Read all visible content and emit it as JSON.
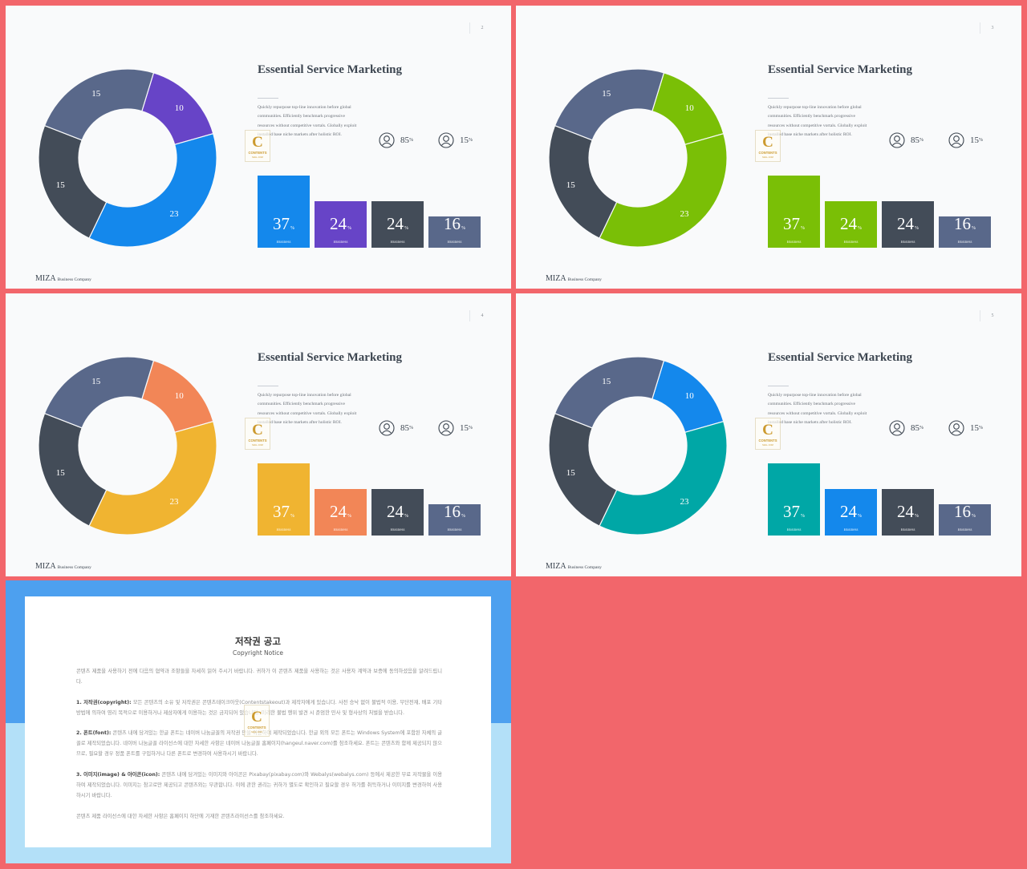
{
  "slides": [
    {
      "page": "2",
      "title": "Essential Service Marketing",
      "description": "Quickly repurpose top-line innovation before global communities. Efficiently benchmark progressive resources without competitive vortals. Globally exploit installed base niche markets after holistic ROI.",
      "stats": [
        {
          "icon": "user-icon",
          "value": "85",
          "unit": "%"
        },
        {
          "icon": "user-icon",
          "value": "15",
          "unit": "%"
        }
      ],
      "donut": [
        {
          "value": 10,
          "label": "10",
          "color": "#6744c7"
        },
        {
          "value": 23,
          "label": "23",
          "color": "#1488ec"
        },
        {
          "value": 15,
          "label": "15",
          "color": "#434c58"
        },
        {
          "value": 15,
          "label": "15",
          "color": "#59688a"
        }
      ],
      "bars": [
        {
          "value": 37,
          "unit": "%",
          "label": "Business",
          "color": "#1488ec"
        },
        {
          "value": 24,
          "unit": "%",
          "label": "Business",
          "color": "#6744c7"
        },
        {
          "value": 24,
          "unit": "%",
          "label": "Business",
          "color": "#434c58"
        },
        {
          "value": 16,
          "unit": "%",
          "label": "Business",
          "color": "#59688a"
        }
      ],
      "footer_brand": "MIZA",
      "footer_sub": "Business Company"
    },
    {
      "page": "3",
      "title": "Essential Service Marketing",
      "description": "Quickly repurpose top-line innovation before global communities. Efficiently benchmark progressive resources without competitive vortals. Globally exploit installed base niche markets after holistic ROI.",
      "stats": [
        {
          "icon": "user-icon",
          "value": "85",
          "unit": "%"
        },
        {
          "icon": "user-icon",
          "value": "15",
          "unit": "%"
        }
      ],
      "donut": [
        {
          "value": 10,
          "label": "10",
          "color": "#7abf06"
        },
        {
          "value": 23,
          "label": "23",
          "color": "#7abf06"
        },
        {
          "value": 15,
          "label": "15",
          "color": "#434c58"
        },
        {
          "value": 15,
          "label": "15",
          "color": "#59688a"
        }
      ],
      "bars": [
        {
          "value": 37,
          "unit": "%",
          "label": "Business",
          "color": "#7abf06"
        },
        {
          "value": 24,
          "unit": "%",
          "label": "Business",
          "color": "#7abf06"
        },
        {
          "value": 24,
          "unit": "%",
          "label": "Business",
          "color": "#434c58"
        },
        {
          "value": 16,
          "unit": "%",
          "label": "Business",
          "color": "#59688a"
        }
      ],
      "footer_brand": "MIZA",
      "footer_sub": "Business Company"
    },
    {
      "page": "4",
      "title": "Essential Service Marketing",
      "description": "Quickly repurpose top-line innovation before global communities. Efficiently benchmark progressive resources without competitive vortals. Globally exploit installed base niche markets after holistic ROI.",
      "stats": [
        {
          "icon": "user-icon",
          "value": "85",
          "unit": "%"
        },
        {
          "icon": "user-icon",
          "value": "15",
          "unit": "%"
        }
      ],
      "donut": [
        {
          "value": 10,
          "label": "10",
          "color": "#f28657"
        },
        {
          "value": 23,
          "label": "23",
          "color": "#f0b431"
        },
        {
          "value": 15,
          "label": "15",
          "color": "#434c58"
        },
        {
          "value": 15,
          "label": "15",
          "color": "#59688a"
        }
      ],
      "bars": [
        {
          "value": 37,
          "unit": "%",
          "label": "Business",
          "color": "#f0b431"
        },
        {
          "value": 24,
          "unit": "%",
          "label": "Business",
          "color": "#f28657"
        },
        {
          "value": 24,
          "unit": "%",
          "label": "Business",
          "color": "#434c58"
        },
        {
          "value": 16,
          "unit": "%",
          "label": "Business",
          "color": "#59688a"
        }
      ],
      "footer_brand": "MIZA",
      "footer_sub": "Business Company"
    },
    {
      "page": "5",
      "title": "Essential Service Marketing",
      "description": "Quickly repurpose top-line innovation before global communities. Efficiently benchmark progressive resources without competitive vortals. Globally exploit installed base niche markets after holistic ROI.",
      "stats": [
        {
          "icon": "user-icon",
          "value": "85",
          "unit": "%"
        },
        {
          "icon": "user-icon",
          "value": "15",
          "unit": "%"
        }
      ],
      "donut": [
        {
          "value": 10,
          "label": "10",
          "color": "#1488ec"
        },
        {
          "value": 23,
          "label": "23",
          "color": "#00a7a6"
        },
        {
          "value": 15,
          "label": "15",
          "color": "#434c58"
        },
        {
          "value": 15,
          "label": "15",
          "color": "#59688a"
        }
      ],
      "bars": [
        {
          "value": 37,
          "unit": "%",
          "label": "Business",
          "color": "#00a7a6"
        },
        {
          "value": 24,
          "unit": "%",
          "label": "Business",
          "color": "#1488ec"
        },
        {
          "value": 24,
          "unit": "%",
          "label": "Business",
          "color": "#434c58"
        },
        {
          "value": 16,
          "unit": "%",
          "label": "Business",
          "color": "#59688a"
        }
      ],
      "footer_brand": "MIZA",
      "footer_sub": "Business Company"
    }
  ],
  "watermark": {
    "letter": "C",
    "line1": "CONTENTS",
    "line2": "MALL.COM"
  },
  "notice": {
    "title": "저작권 공고",
    "subtitle": "Copyright Notice",
    "intro": "콘텐츠 제품을 사용하기 전에 다음의 협약과 조항들을 자세히 읽어 주시기 바랍니다. 귀하가 이 콘텐츠 제품을 사용하는 것은 사용자 계약과 보증에 동의하셨음을 알려드립니다.",
    "s1_head": "1. 저작권(copyright):",
    "s1_body": " 모든 콘텐츠의 소유 및 저작권은 콘텐츠테이크아웃(Contentstakeout)과 제작자에게 있습니다. 사전 승낙 없이 불법적 이용, 무단전재, 배포 기타 방법에 의하여 영리 목적으로 이용하거나 제삼자에게 이용하는 것은 금지되어 있습니다. 미리한 불법 행위 발견 시 준엄한 민사 및 형사상의 처벌을 받습니다.",
    "s2_head": "2. 폰트(font):",
    "s2_body": " 콘텐츠 내에 담겨있는 한글 폰트는 네이버 나눔글꼴의 저작권 만을 이용하여 제작되었습니다. 한글 외의 모든 폰트는 Windows System에 포함된 자체의 글꼴로 제작되었습니다. 네이버 나눔글꼴 라이선스에 대한 자세한 사항은 네이버 나눔글꼴 홈페이지(hangeul.naver.com)를 참조하세요. 폰트는 콘텐츠와 함께 제공되지 않으므로, 필요할 경우 정품 폰트를 구입하거나 다른 폰트로 변경하여 사용하시기 바랍니다.",
    "s3_head": "3. 이미지(image) & 아이콘(icon):",
    "s3_body": " 콘텐츠 내에 담겨있는 이미지와 아이콘은 Pixabay(pixabay.com)와 Webalys(webalys.com) 등에서 제공한 무료 저작물을 이용하여 제작되었습니다. 이미지는 참고로만 제공되고 콘텐츠와는 무관합니다. 이에 관한 권리는 귀하가 별도로 확인하고 필요할 경우 허가를 취득하거나 이미지를 변경하여 사용하시기 바랍니다.",
    "closing": "콘텐츠 제품 라이선스에 대한 자세한 사항은 홈페이지 하단에 기재한 콘텐츠라이선스를 참조하세요."
  }
}
